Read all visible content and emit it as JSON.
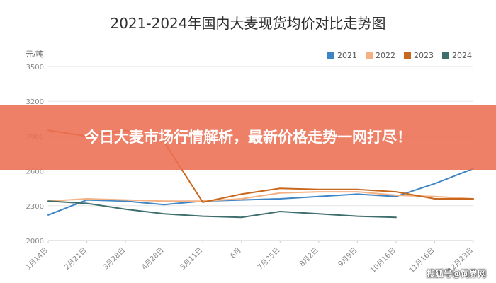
{
  "banner": {
    "text": "今日大麦市场行情解析，最新价格走势一网打尽！"
  },
  "watermark": {
    "text": "搜狐号@饲界网"
  },
  "chart_data": {
    "type": "line",
    "title": "2021-2024年国内大麦现货均价对比走势图",
    "ylabel": "元/吨",
    "xlabel": "",
    "ylim": [
      2000,
      3500
    ],
    "yticks": [
      2000,
      2300,
      2600,
      2900,
      3200,
      3500
    ],
    "grid": true,
    "legend_position": "top-right",
    "categories": [
      "1月14日",
      "2月21日",
      "3月28日",
      "4月28日",
      "5月11日",
      "6月",
      "7月25日",
      "8月2日",
      "9月9日",
      "10月16日",
      "11月16日",
      "12月23日"
    ],
    "series": [
      {
        "name": "2021",
        "color": "#3d85c6",
        "values": [
          2220,
          2350,
          2340,
          2310,
          2340,
          2350,
          2360,
          2380,
          2400,
          2380,
          2490,
          2620
        ]
      },
      {
        "name": "2022",
        "color": "#f4b183",
        "values": [
          2340,
          2360,
          2350,
          2340,
          2340,
          2360,
          2410,
          2420,
          2420,
          2390,
          2380,
          2360
        ]
      },
      {
        "name": "2023",
        "color": "#c8681e",
        "values": [
          2950,
          2900,
          2950,
          2850,
          2330,
          2400,
          2450,
          2440,
          2440,
          2420,
          2360,
          2360
        ]
      },
      {
        "name": "2024",
        "color": "#3f6e6e",
        "values": [
          2340,
          2320,
          2270,
          2230,
          2210,
          2200,
          2250,
          2230,
          2210,
          2200,
          null,
          null
        ]
      }
    ]
  }
}
